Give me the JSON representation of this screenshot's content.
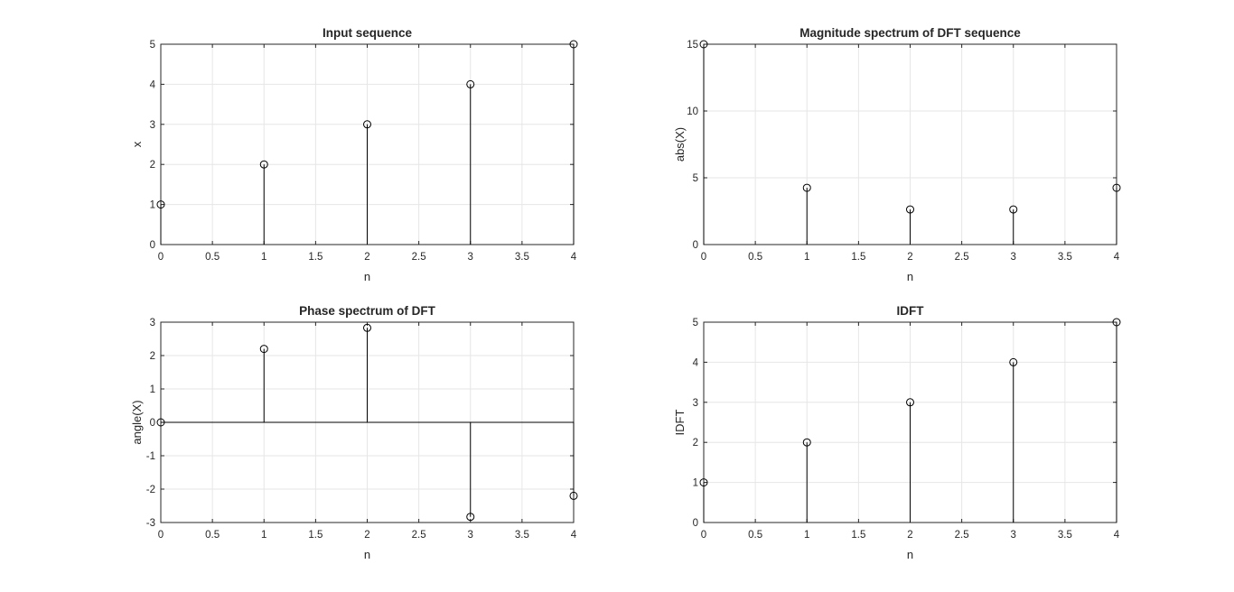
{
  "chart_data": [
    {
      "type": "stem",
      "title": "Input sequence",
      "xlabel": "n",
      "ylabel": "x",
      "x": [
        0,
        1,
        2,
        3,
        4
      ],
      "y": [
        1,
        2,
        3,
        4,
        5
      ],
      "xlim": [
        0,
        4
      ],
      "ylim": [
        0,
        5
      ],
      "xticks": [
        "0",
        "0.5",
        "1",
        "1.5",
        "2",
        "2.5",
        "3",
        "3.5",
        "4"
      ],
      "yticks": [
        "0",
        "1",
        "2",
        "3",
        "4",
        "5"
      ],
      "grid": true
    },
    {
      "type": "stem",
      "title": "Magnitude spectrum of DFT sequence",
      "xlabel": "n",
      "ylabel": "abs(X)",
      "x": [
        0,
        1,
        2,
        3,
        4
      ],
      "y": [
        15,
        4.25,
        2.63,
        2.63,
        4.25
      ],
      "xlim": [
        0,
        4
      ],
      "ylim": [
        0,
        15
      ],
      "xticks": [
        "0",
        "0.5",
        "1",
        "1.5",
        "2",
        "2.5",
        "3",
        "3.5",
        "4"
      ],
      "yticks": [
        "0",
        "5",
        "10",
        "15"
      ],
      "grid": true
    },
    {
      "type": "stem",
      "title": "Phase spectrum of DFT",
      "xlabel": "n",
      "ylabel": "angle(X)",
      "x": [
        0,
        1,
        2,
        3,
        4
      ],
      "y": [
        0,
        2.2,
        2.83,
        -2.83,
        -2.2
      ],
      "xlim": [
        0,
        4
      ],
      "ylim": [
        -3,
        3
      ],
      "xticks": [
        "0",
        "0.5",
        "1",
        "1.5",
        "2",
        "2.5",
        "3",
        "3.5",
        "4"
      ],
      "yticks": [
        "-3",
        "-2",
        "-1",
        "0",
        "1",
        "2",
        "3"
      ],
      "baseline": 0,
      "grid": true
    },
    {
      "type": "stem",
      "title": "IDFT",
      "xlabel": "n",
      "ylabel": "IDFT",
      "x": [
        0,
        1,
        2,
        3,
        4
      ],
      "y": [
        1,
        2,
        3,
        4,
        5
      ],
      "xlim": [
        0,
        4
      ],
      "ylim": [
        0,
        5
      ],
      "xticks": [
        "0",
        "0.5",
        "1",
        "1.5",
        "2",
        "2.5",
        "3",
        "3.5",
        "4"
      ],
      "yticks": [
        "0",
        "1",
        "2",
        "3",
        "4",
        "5"
      ],
      "grid": true
    }
  ],
  "colors": {
    "background": "#ffffff",
    "axes": "#262626",
    "grid": "#e6e6e6",
    "stem": "#000000"
  }
}
